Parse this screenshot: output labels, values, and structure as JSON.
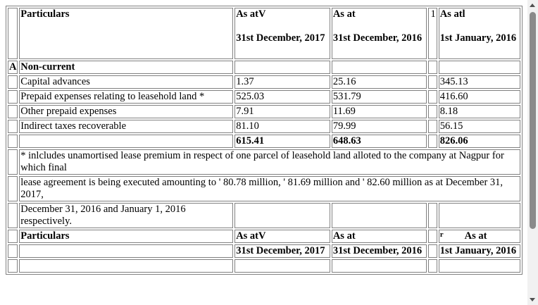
{
  "header": {
    "particulars": "Particulars",
    "col1_top": "As atV",
    "col1_bottom": "31st December, 2017",
    "col2_top": "As at",
    "col2_bottom": "31st December, 2016",
    "col3_marker": "1",
    "col3_top": "As atl",
    "col3_bottom": "1st January, 2016"
  },
  "section": {
    "marker": "A",
    "label": "Non-current"
  },
  "rows": [
    {
      "label": "Capital advances",
      "v1": "1.37",
      "v2": "25.16",
      "v3": "345.13"
    },
    {
      "label": "Prepaid expenses relating to leasehold land *",
      "v1": "525.03",
      "v2": "531.79",
      "v3": "416.60"
    },
    {
      "label": "Other prepaid expenses",
      "v1": "7.91",
      "v2": "11.69",
      "v3": "8.18"
    },
    {
      "label": "Indirect taxes recoverable",
      "v1": "81.10",
      "v2": "79.99",
      "v3": "56.15"
    }
  ],
  "totals": {
    "v1": "615.41",
    "v2": "648.63",
    "v3": "826.06"
  },
  "notes": {
    "line1": "*   inlcludes unamortised lease premium in respect of one parcel of leasehold land alloted to the company at Nagpur for which final",
    "line2": "lease agreement is being executed amounting to ' 80.78 million, ' 81.69 million and ' 82.60 million as at December 31, 2017,",
    "line3": "December 31, 2016 and January 1, 2016 respectively."
  },
  "header2": {
    "particulars": "Particulars",
    "col1_top": "As atV",
    "col1_bottom": "31st December, 2017",
    "col2_top": "As at",
    "col2_bottom": "31st December, 2016",
    "col3_marker": "r",
    "col3_top": "As at",
    "col3_bottom": "1st January, 2016"
  },
  "colors": {
    "border": "#808080",
    "background": "#ffffff",
    "scrollbar_track": "#f1f1f1",
    "scrollbar_thumb": "#8a8a8a"
  }
}
